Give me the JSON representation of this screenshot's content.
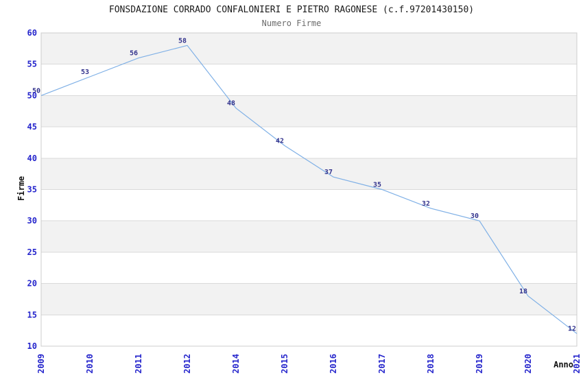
{
  "header": {
    "title": "FONSDAZIONE CORRADO CONFALONIERI E PIETRO RAGONESE (c.f.97201430150)",
    "subtitle": "Numero Firme"
  },
  "chart_data": {
    "type": "line",
    "title": "FONSDAZIONE CORRADO CONFALONIERI E PIETRO RAGONESE (c.f.97201430150)",
    "subtitle": "Numero Firme",
    "xlabel": "Anno",
    "ylabel": "Firme",
    "categories": [
      "2009",
      "2010",
      "2011",
      "2012",
      "2014",
      "2015",
      "2016",
      "2017",
      "2018",
      "2019",
      "2020",
      "2021"
    ],
    "values": [
      50,
      53,
      56,
      58,
      48,
      42,
      37,
      35,
      32,
      30,
      18,
      12
    ],
    "ylim": [
      10,
      60
    ],
    "ytick_step": 5,
    "ytick_labels": [
      "10",
      "15",
      "20",
      "25",
      "30",
      "35",
      "40",
      "45",
      "50",
      "55",
      "60"
    ],
    "grid": true,
    "legend_visible": false,
    "band_fill_alternating": true,
    "colors": {
      "line": "#7fb0e6",
      "band_gray": "#f2f2f2",
      "band_white": "#ffffff",
      "gridline": "#d9d9d9",
      "plot_border": "#cccccc",
      "tick_label": "#2525cc",
      "data_label": "#32328c",
      "axis_title": "#111111",
      "title": "#1a1a1a",
      "subtitle": "#6b6b6b"
    }
  }
}
